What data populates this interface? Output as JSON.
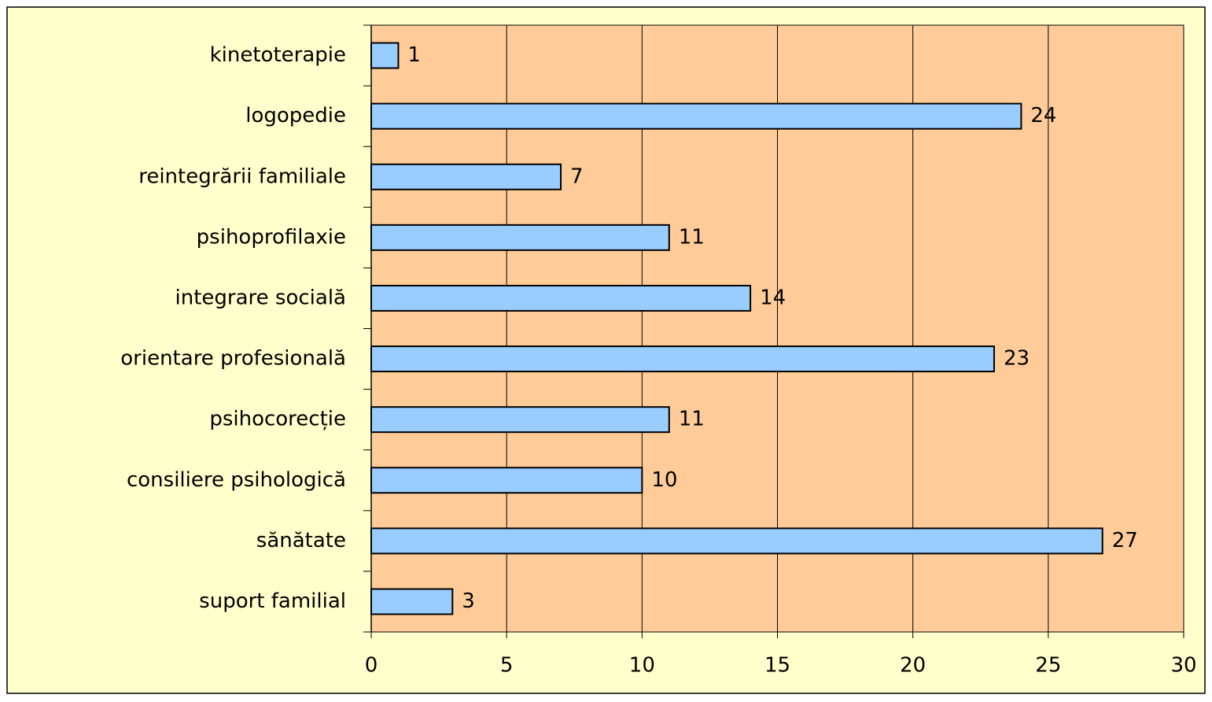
{
  "chart_data": {
    "type": "barh",
    "categories": [
      "kinetoterapie",
      "logopedie",
      "reintegrării familiale",
      "psihoprofilaxie",
      "integrare socială",
      "orientare profesională",
      "psihocorecție",
      "consiliere psihologică",
      "sănătate",
      "suport familial"
    ],
    "values": [
      1,
      24,
      7,
      11,
      14,
      23,
      11,
      10,
      27,
      3
    ],
    "color": "#99ccff",
    "xlim": [
      0,
      30
    ],
    "xticks": [
      0,
      5,
      10,
      15,
      20,
      25,
      30
    ],
    "grid": true
  }
}
